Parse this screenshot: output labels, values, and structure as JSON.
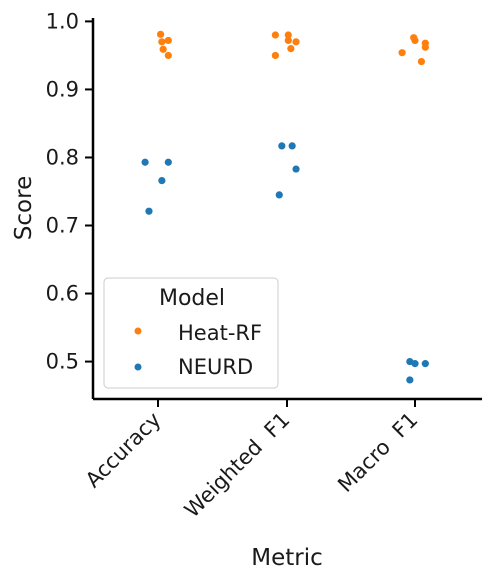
{
  "chart_data": {
    "type": "scatter",
    "title": "",
    "xlabel": "Metric",
    "ylabel": "Score",
    "categories": [
      "Accuracy",
      "Weighted  F1",
      "Macro  F1"
    ],
    "ylim": [
      0.445,
      1.005
    ],
    "yticks": [
      "0.5",
      "0.6",
      "0.7",
      "0.8",
      "0.9",
      "1.0"
    ],
    "grid": false,
    "legend": {
      "title": "Model",
      "position": "lower-left"
    },
    "series": [
      {
        "name": "Heat-RF",
        "color": "#ff7f0e",
        "points": [
          {
            "category": 0,
            "jitter": 0.02,
            "y": 0.981
          },
          {
            "category": 0,
            "jitter": 0.03,
            "y": 0.97
          },
          {
            "category": 0,
            "jitter": 0.08,
            "y": 0.972
          },
          {
            "category": 0,
            "jitter": 0.04,
            "y": 0.959
          },
          {
            "category": 0,
            "jitter": 0.08,
            "y": 0.95
          },
          {
            "category": 1,
            "jitter": -0.09,
            "y": 0.98
          },
          {
            "category": 1,
            "jitter": 0.01,
            "y": 0.98
          },
          {
            "category": 1,
            "jitter": 0.01,
            "y": 0.972
          },
          {
            "category": 1,
            "jitter": 0.07,
            "y": 0.97
          },
          {
            "category": 1,
            "jitter": 0.03,
            "y": 0.96
          },
          {
            "category": 1,
            "jitter": -0.09,
            "y": 0.95
          },
          {
            "category": 2,
            "jitter": -0.01,
            "y": 0.976
          },
          {
            "category": 2,
            "jitter": 0.0,
            "y": 0.972
          },
          {
            "category": 2,
            "jitter": 0.08,
            "y": 0.968
          },
          {
            "category": 2,
            "jitter": 0.08,
            "y": 0.962
          },
          {
            "category": 2,
            "jitter": -0.1,
            "y": 0.954
          },
          {
            "category": 2,
            "jitter": 0.05,
            "y": 0.941
          }
        ]
      },
      {
        "name": "NEURD",
        "color": "#1f77b4",
        "points": [
          {
            "category": 0,
            "jitter": -0.1,
            "y": 0.793
          },
          {
            "category": 0,
            "jitter": 0.08,
            "y": 0.793
          },
          {
            "category": 0,
            "jitter": 0.03,
            "y": 0.766
          },
          {
            "category": 0,
            "jitter": -0.07,
            "y": 0.721
          },
          {
            "category": 1,
            "jitter": -0.04,
            "y": 0.817
          },
          {
            "category": 1,
            "jitter": 0.04,
            "y": 0.817
          },
          {
            "category": 1,
            "jitter": 0.07,
            "y": 0.783
          },
          {
            "category": 1,
            "jitter": -0.06,
            "y": 0.745
          },
          {
            "category": 2,
            "jitter": -0.04,
            "y": 0.5
          },
          {
            "category": 2,
            "jitter": 0.0,
            "y": 0.497
          },
          {
            "category": 2,
            "jitter": 0.08,
            "y": 0.497
          },
          {
            "category": 2,
            "jitter": -0.04,
            "y": 0.473
          }
        ]
      }
    ]
  }
}
